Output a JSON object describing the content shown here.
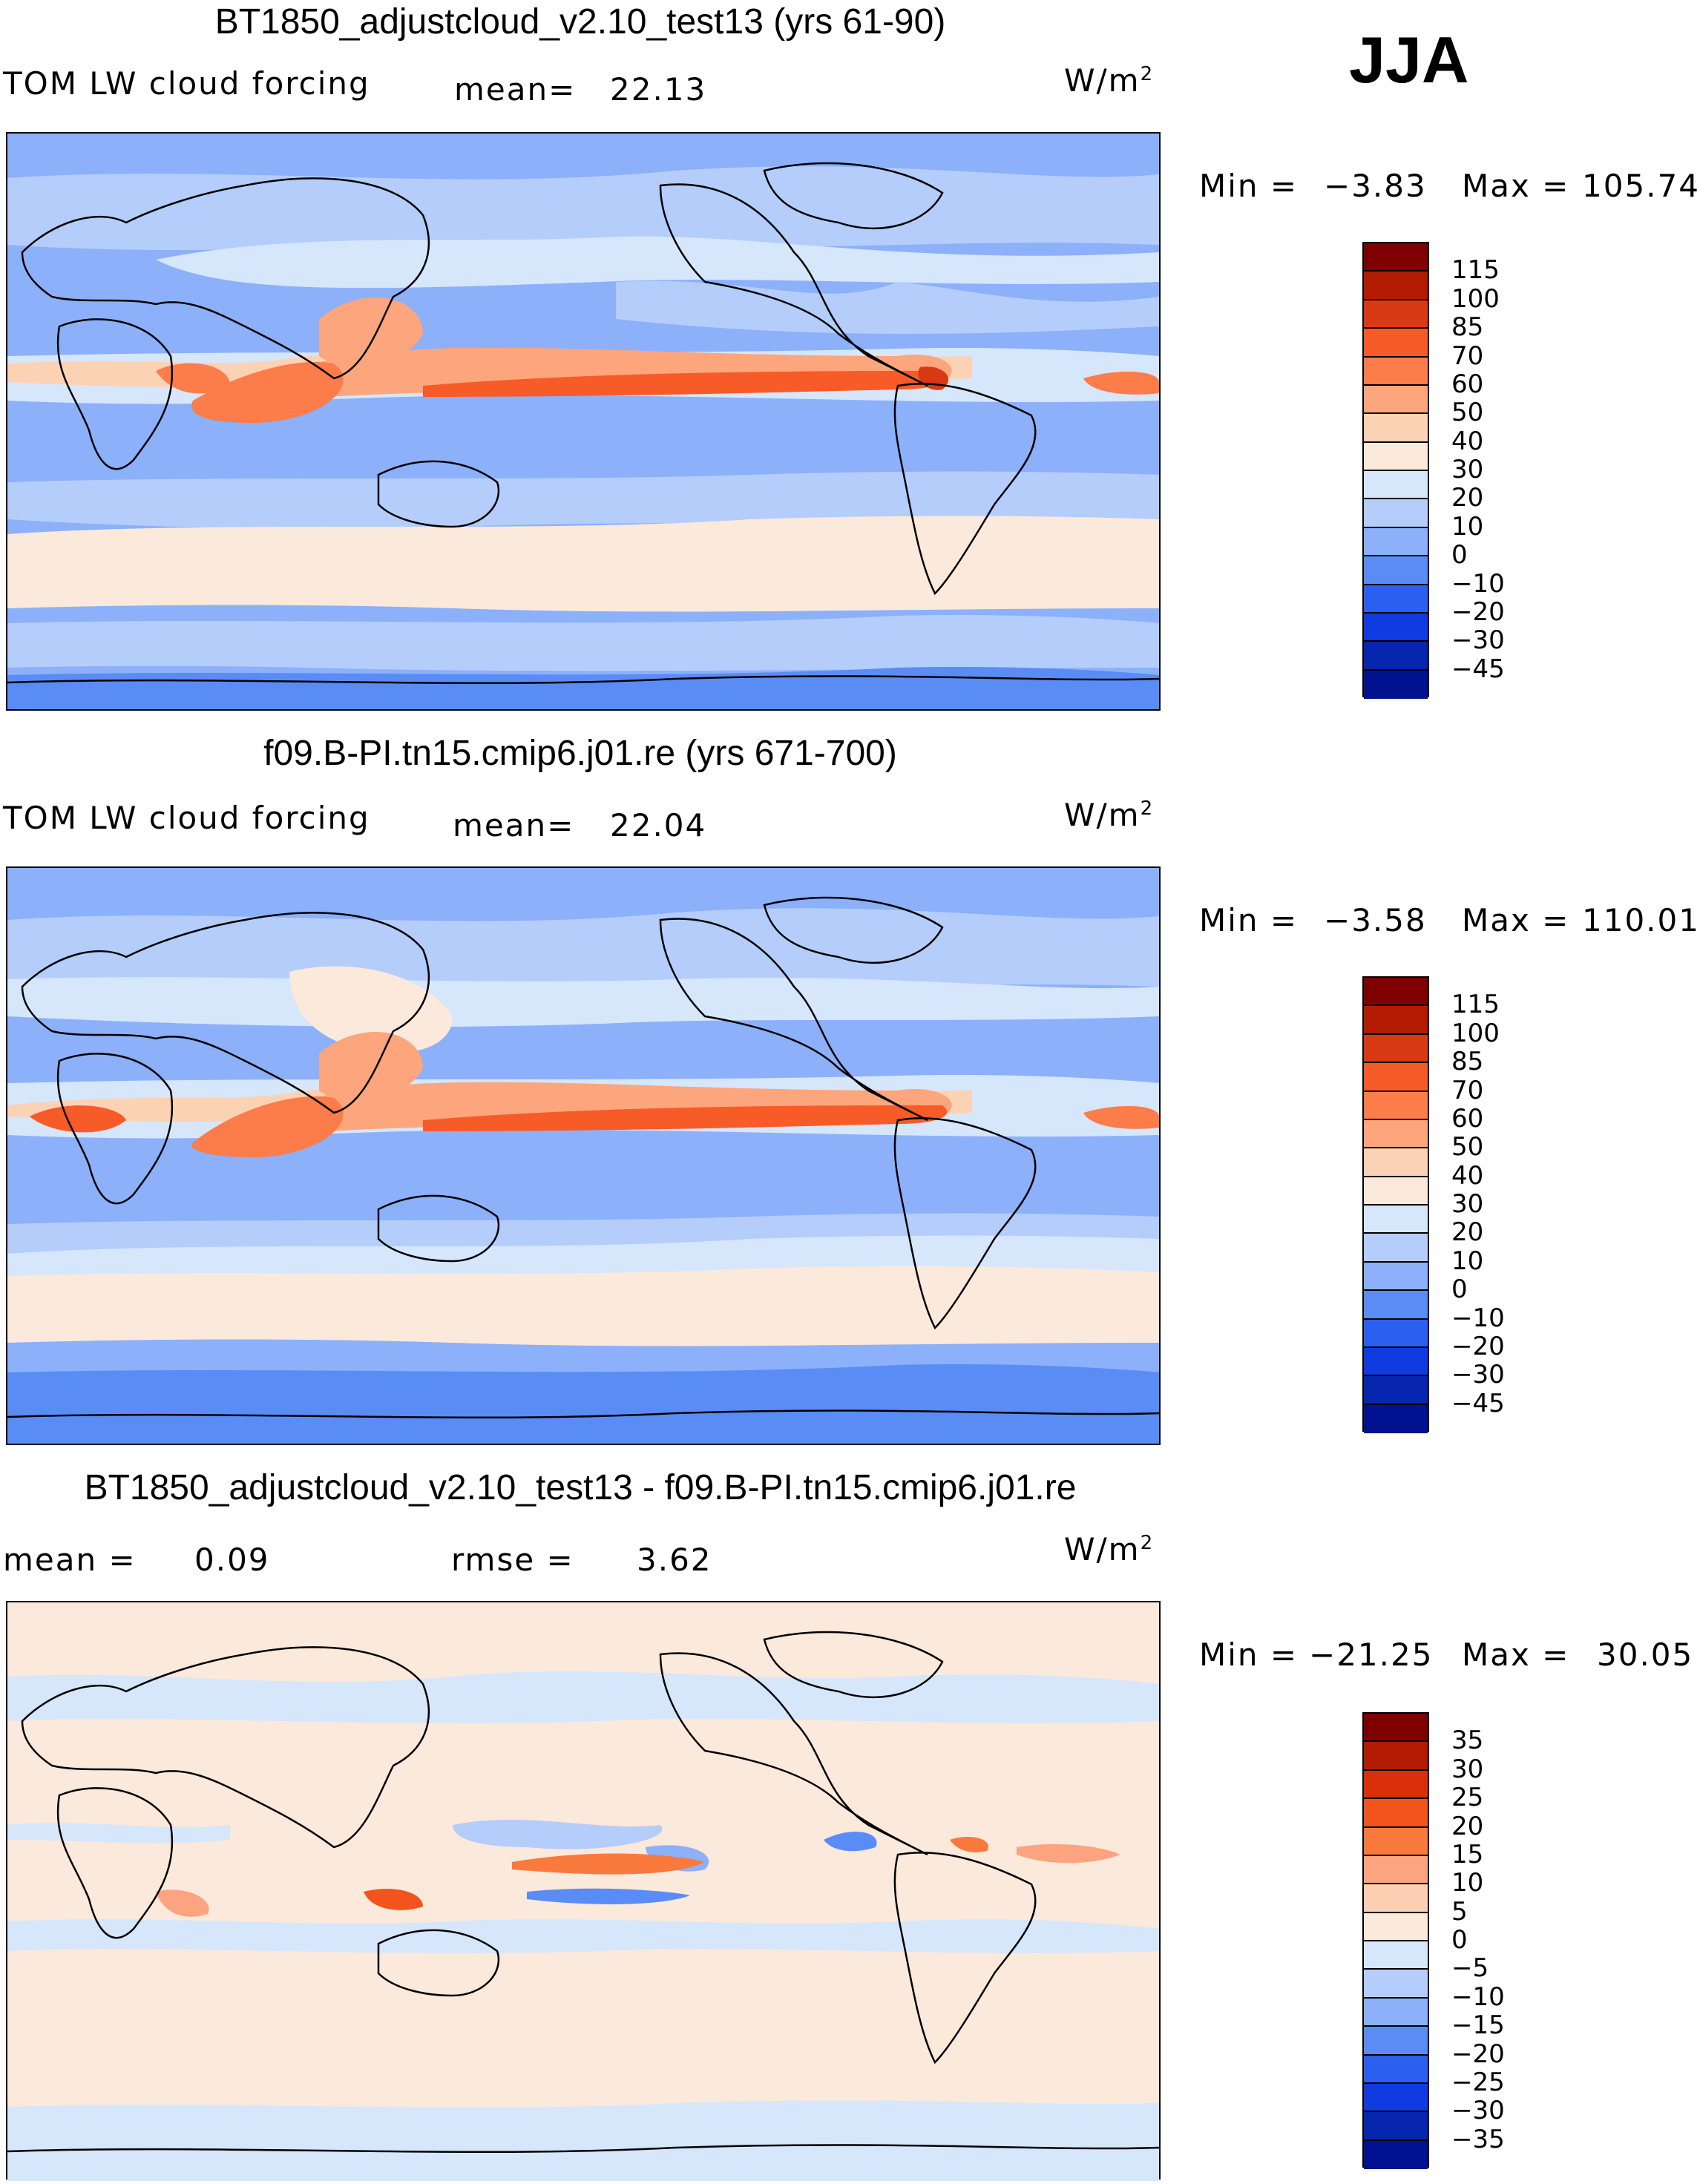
{
  "season": "JJA",
  "panels": [
    {
      "title": "BT1850_adjustcloud_v2.10_test13 (yrs 61-90)",
      "variable": "TOM LW cloud forcing",
      "stat1_label": "mean=",
      "stat1_value": "22.13",
      "units": "W/m",
      "units_sup": "2",
      "min_label": "Min =",
      "min_value": "−3.83",
      "max_label": "Max =",
      "max_value": "105.74"
    },
    {
      "title": "f09.B-PI.tn15.cmip6.j01.re (yrs 671-700)",
      "variable": "TOM LW cloud forcing",
      "stat1_label": "mean=",
      "stat1_value": "22.04",
      "units": "W/m",
      "units_sup": "2",
      "min_label": "Min =",
      "min_value": "−3.58",
      "max_label": "Max =",
      "max_value": "110.01"
    },
    {
      "title": "BT1850_adjustcloud_v2.10_test13 - f09.B-PI.tn15.cmip6.j01.re",
      "stat1_label": "mean =",
      "stat1_value": "0.09",
      "stat2_label": "rmse =",
      "stat2_value": "3.62",
      "units": "W/m",
      "units_sup": "2",
      "min_label": "Min =",
      "min_value": "−21.25",
      "max_label": "Max =",
      "max_value": "30.05"
    }
  ],
  "chart_data": [
    {
      "type": "heatmap",
      "title": "BT1850_adjustcloud_v2.10_test13 (yrs 61-90)",
      "variable": "TOM LW cloud forcing",
      "units": "W/m2",
      "mean": 22.13,
      "min": -3.83,
      "max": 105.74,
      "colorbar_levels": [
        "115",
        "100",
        "85",
        "70",
        "60",
        "50",
        "40",
        "30",
        "20",
        "10",
        "0",
        "−10",
        "−20",
        "−30",
        "−45"
      ],
      "colorbar_colors": [
        "#7f0000",
        "#b31b00",
        "#d93a14",
        "#f75b28",
        "#fc7c4a",
        "#fda57c",
        "#fcd2b4",
        "#fbe9dc",
        "#d6e6fb",
        "#b4cdfb",
        "#8cb0fa",
        "#5a8cf5",
        "#2b5ff0",
        "#0f3be0",
        "#0626b0",
        "#001290"
      ]
    },
    {
      "type": "heatmap",
      "title": "f09.B-PI.tn15.cmip6.j01.re (yrs 671-700)",
      "variable": "TOM LW cloud forcing",
      "units": "W/m2",
      "mean": 22.04,
      "min": -3.58,
      "max": 110.01,
      "colorbar_levels": [
        "115",
        "100",
        "85",
        "70",
        "60",
        "50",
        "40",
        "30",
        "20",
        "10",
        "0",
        "−10",
        "−20",
        "−30",
        "−45"
      ],
      "colorbar_colors": [
        "#7f0000",
        "#b31b00",
        "#d93a14",
        "#f75b28",
        "#fc7c4a",
        "#fda57c",
        "#fcd2b4",
        "#fbe9dc",
        "#d6e6fb",
        "#b4cdfb",
        "#8cb0fa",
        "#5a8cf5",
        "#2b5ff0",
        "#0f3be0",
        "#0626b0",
        "#001290"
      ]
    },
    {
      "type": "heatmap",
      "title": "BT1850_adjustcloud_v2.10_test13 - f09.B-PI.tn15.cmip6.j01.re",
      "units": "W/m2",
      "mean": 0.09,
      "rmse": 3.62,
      "min": -21.25,
      "max": 30.05,
      "colorbar_levels": [
        "35",
        "30",
        "25",
        "20",
        "15",
        "10",
        "5",
        "0",
        "−5",
        "−10",
        "−15",
        "−20",
        "−25",
        "−30",
        "−35"
      ],
      "colorbar_colors": [
        "#7f0000",
        "#b31b00",
        "#d9300a",
        "#f2541c",
        "#f97a3c",
        "#fca480",
        "#fdd0b4",
        "#fde9da",
        "#d6e6fb",
        "#b4cdfb",
        "#8cb0fa",
        "#5a8cf5",
        "#2b5ff0",
        "#0f3be0",
        "#0626b0",
        "#001290"
      ]
    }
  ]
}
